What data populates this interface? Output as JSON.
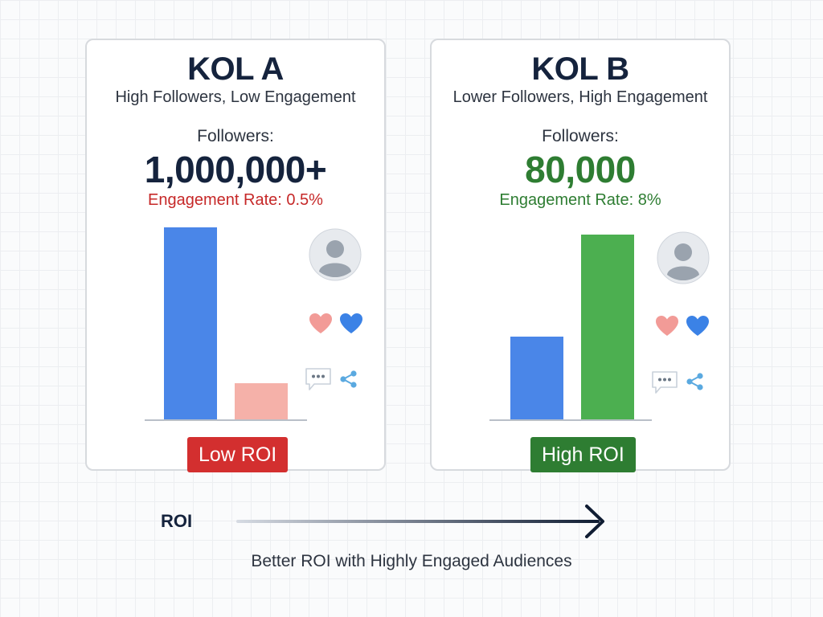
{
  "colors": {
    "blue": "#4a86e8",
    "pink": "#f5b1a9",
    "green": "#4caf50",
    "red_text": "#c62828",
    "green_text": "#2e7d32",
    "low_badge": "#d32f2f",
    "high_badge": "#2e7d32",
    "heart_pink": "#f29b97",
    "heart_blue": "#3b82e6",
    "share_icon": "#5aa9e0"
  },
  "cards": [
    {
      "title": "KOL A",
      "subtitle": "High Followers, Low Engagement",
      "followers_label": "Followers:",
      "followers_value": "1,000,000+",
      "engagement": "Engagement Rate: 0.5%",
      "roi_badge": "Low ROI",
      "bars": [
        {
          "color": "blue",
          "relative_height": 1.0
        },
        {
          "color": "pink",
          "relative_height": 0.19
        }
      ],
      "icons": [
        "avatar-icon",
        "heart-pink-icon",
        "heart-blue-icon",
        "comment-icon",
        "share-icon"
      ]
    },
    {
      "title": "KOL B",
      "subtitle": "Lower Followers, High Engagement",
      "followers_label": "Followers:",
      "followers_value": "80,000",
      "engagement": "Engagement Rate: 8%",
      "roi_badge": "High ROI",
      "bars": [
        {
          "color": "blue",
          "relative_height": 0.43
        },
        {
          "color": "green",
          "relative_height": 0.96
        }
      ],
      "icons": [
        "avatar-icon",
        "heart-pink-icon",
        "heart-blue-icon",
        "comment-icon",
        "share-icon"
      ]
    }
  ],
  "axis": {
    "label": "ROI"
  },
  "caption": "Better ROI with Highly Engaged Audiences"
}
